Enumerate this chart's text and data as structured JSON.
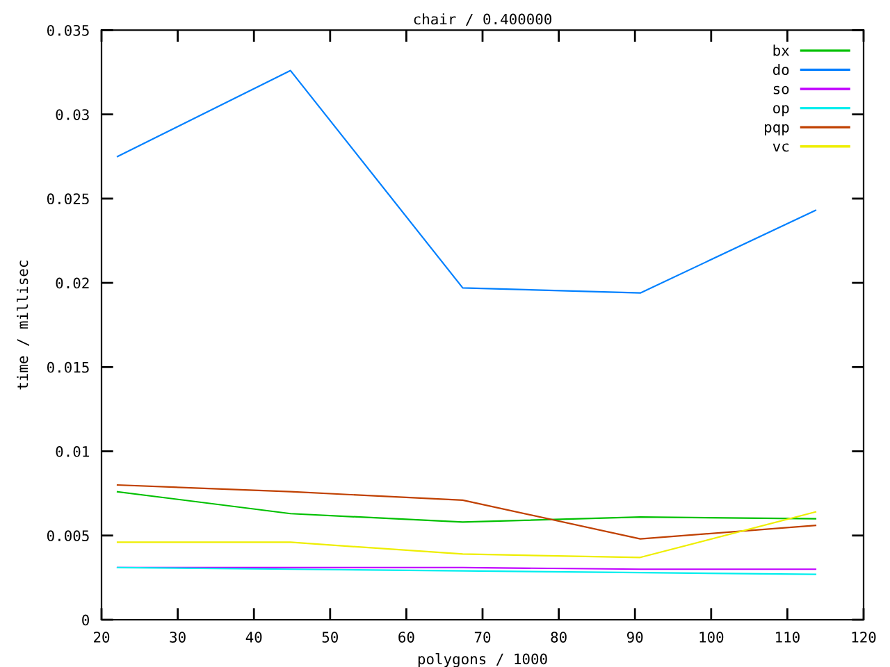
{
  "chart_data": {
    "type": "line",
    "title": "chair / 0.400000",
    "xlabel": "polygons / 1000",
    "ylabel": "time / millisec",
    "x": [
      22.1,
      44.8,
      67.4,
      90.7,
      113.7
    ],
    "series": [
      {
        "name": "bx",
        "color": "#00c000",
        "values": [
          0.0076,
          0.0063,
          0.0058,
          0.0061,
          0.006
        ]
      },
      {
        "name": "do",
        "color": "#0080ff",
        "values": [
          0.0275,
          0.0326,
          0.0197,
          0.0194,
          0.0243
        ]
      },
      {
        "name": "so",
        "color": "#c000ff",
        "values": [
          0.0031,
          0.0031,
          0.0031,
          0.003,
          0.003
        ]
      },
      {
        "name": "op",
        "color": "#00eeee",
        "values": [
          0.0031,
          0.003,
          0.0029,
          0.0028,
          0.0027
        ]
      },
      {
        "name": "pqp",
        "color": "#c04000",
        "values": [
          0.008,
          0.0076,
          0.0071,
          0.0048,
          0.0056
        ]
      },
      {
        "name": "vc",
        "color": "#eeee00",
        "values": [
          0.0046,
          0.0046,
          0.0039,
          0.0037,
          0.0064
        ]
      }
    ],
    "xlim": [
      20,
      120
    ],
    "ylim": [
      0,
      0.035
    ],
    "xticks": [
      20,
      30,
      40,
      50,
      60,
      70,
      80,
      90,
      100,
      110,
      120
    ],
    "yticks": [
      0,
      0.005,
      0.01,
      0.015,
      0.02,
      0.025,
      0.03,
      0.035
    ],
    "legend": "top right",
    "grid": false,
    "marker": "none",
    "line_style": "solid"
  }
}
